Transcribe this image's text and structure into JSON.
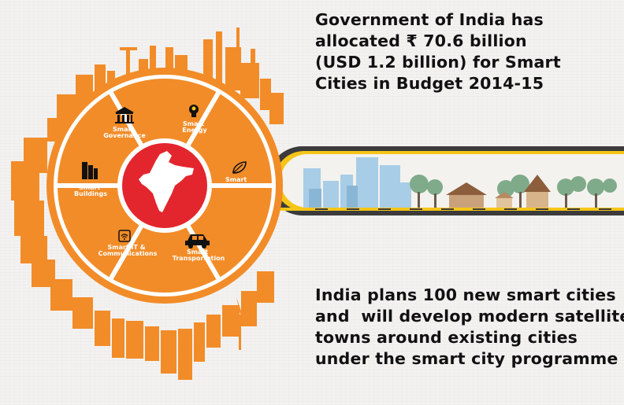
{
  "headline_top": {
    "lines": [
      "Government of India has",
      "allocated ₹ 70.6 billion",
      "(USD 1.2 billion) for Smart",
      "Cities in Budget 2014-15"
    ]
  },
  "headline_bottom": {
    "lines": [
      "India plans 100 new smart cities",
      "and  will develop modern satellite",
      "towns around existing cities",
      "under the smart city programme"
    ]
  },
  "wheel_segments": [
    {
      "line1": "Smart",
      "line2": "Governance",
      "icon": "government-building-icon"
    },
    {
      "line1": "Smart",
      "line2": "Energy",
      "icon": "light-bulb-icon"
    },
    {
      "line1": "Smart",
      "line2": "Environment",
      "icon": "leaf-icon"
    },
    {
      "line1": "Smart",
      "line2": "Transportation",
      "icon": "car-icon"
    },
    {
      "line1": "Smart IT &",
      "line2": "Communications",
      "icon": "wifi-icon"
    },
    {
      "line1": "Smart",
      "line2": "Buildings",
      "icon": "office-buildings-icon"
    }
  ],
  "colors": {
    "orange": "#f28c28",
    "dark_orange": "#e2701a",
    "red": "#e3262e",
    "ring_dark": "#3b3b3b",
    "ring_yellow": "#f5c518"
  }
}
